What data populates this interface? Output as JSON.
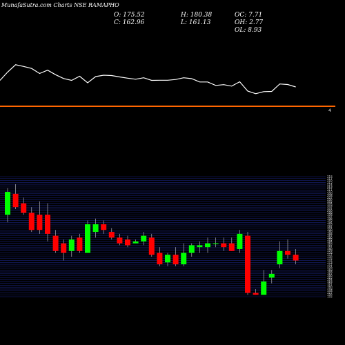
{
  "header": {
    "title": "MunafaSutra.com Charts NSE RAMAPHO"
  },
  "ohlc": {
    "open": "O: 175.52",
    "close": "C: 162.96",
    "high": "H: 180.38",
    "low": "L: 161.13",
    "oc": "OC: 7.71",
    "oh": "OH: 2.77",
    "ol": "OL: 8.93"
  },
  "colors": {
    "background": "#000000",
    "up_candle": "#00ff00",
    "down_candle": "#ff0000",
    "price_line": "#ffffff",
    "orange_line": "#ff6600",
    "grid": "#1a237e"
  },
  "upper_panel": {
    "orange_level_label": "4"
  },
  "chart_data": {
    "type": "candlestick",
    "ylim": [
      155,
      218
    ],
    "y_ticks": [
      218,
      217,
      216,
      215,
      214,
      213,
      212,
      211,
      210,
      209,
      208,
      207,
      206,
      205,
      204,
      203,
      202,
      201,
      200,
      199,
      198,
      197,
      196,
      195,
      194,
      193,
      192,
      191,
      190,
      189,
      188,
      187,
      186,
      185,
      184,
      183,
      182,
      181,
      180,
      179,
      178,
      177,
      176,
      175,
      174,
      173,
      172,
      171,
      170,
      169,
      168,
      167,
      166,
      165,
      164,
      163,
      162,
      161,
      160,
      159,
      158,
      157,
      156,
      155
    ],
    "candles": [
      {
        "o": 198,
        "h": 212,
        "l": 194,
        "c": 210
      },
      {
        "o": 209,
        "h": 214,
        "l": 201,
        "c": 202
      },
      {
        "o": 204,
        "h": 207,
        "l": 198,
        "c": 199
      },
      {
        "o": 199,
        "h": 202,
        "l": 189,
        "c": 190
      },
      {
        "o": 198,
        "h": 205,
        "l": 188,
        "c": 190
      },
      {
        "o": 198,
        "h": 204,
        "l": 184,
        "c": 188
      },
      {
        "o": 187,
        "h": 190,
        "l": 178,
        "c": 179
      },
      {
        "o": 183,
        "h": 185,
        "l": 174,
        "c": 178
      },
      {
        "o": 179,
        "h": 187,
        "l": 176,
        "c": 185
      },
      {
        "o": 186,
        "h": 188,
        "l": 178,
        "c": 179
      },
      {
        "o": 178,
        "h": 195,
        "l": 178,
        "c": 193
      },
      {
        "o": 189,
        "h": 196,
        "l": 186,
        "c": 193
      },
      {
        "o": 193,
        "h": 195,
        "l": 188,
        "c": 190
      },
      {
        "o": 189,
        "h": 191,
        "l": 185,
        "c": 186
      },
      {
        "o": 186,
        "h": 188,
        "l": 182,
        "c": 183
      },
      {
        "o": 185,
        "h": 187,
        "l": 181,
        "c": 182
      },
      {
        "o": 183,
        "h": 185,
        "l": 183,
        "c": 184
      },
      {
        "o": 184,
        "h": 189,
        "l": 182,
        "c": 187
      },
      {
        "o": 186,
        "h": 188,
        "l": 176,
        "c": 177
      },
      {
        "o": 178,
        "h": 181,
        "l": 171,
        "c": 172
      },
      {
        "o": 173,
        "h": 178,
        "l": 171,
        "c": 177
      },
      {
        "o": 177,
        "h": 181,
        "l": 171,
        "c": 172
      },
      {
        "o": 172,
        "h": 183,
        "l": 171,
        "c": 178
      },
      {
        "o": 178,
        "h": 183,
        "l": 176,
        "c": 182
      },
      {
        "o": 181,
        "h": 184,
        "l": 178,
        "c": 182
      },
      {
        "o": 181,
        "h": 186,
        "l": 178,
        "c": 183
      },
      {
        "o": 183,
        "h": 186,
        "l": 181,
        "c": 183
      },
      {
        "o": 183,
        "h": 186,
        "l": 179,
        "c": 181
      },
      {
        "o": 183,
        "h": 186,
        "l": 179,
        "c": 179
      },
      {
        "o": 180,
        "h": 190,
        "l": 178,
        "c": 188
      },
      {
        "o": 187,
        "h": 189,
        "l": 156,
        "c": 157
      },
      {
        "o": 157,
        "h": 159,
        "l": 156,
        "c": 156
      },
      {
        "o": 156,
        "h": 169,
        "l": 156,
        "c": 163
      },
      {
        "o": 165,
        "h": 169,
        "l": 162,
        "c": 167
      },
      {
        "o": 172,
        "h": 184,
        "l": 170,
        "c": 179
      },
      {
        "o": 179,
        "h": 185,
        "l": 175,
        "c": 177
      },
      {
        "o": 177,
        "h": 180,
        "l": 172,
        "c": 174
      }
    ],
    "line_series": [
      {
        "y": 214.2,
        "wobble": 0
      },
      {
        "y": 218.5
      },
      {
        "y": 217.5
      },
      {
        "y": 216.3
      },
      {
        "y": 213.4
      },
      {
        "y": 215.3
      },
      {
        "y": 212.7
      },
      {
        "y": 210.5
      },
      {
        "y": 209.4
      },
      {
        "y": 211.8
      },
      {
        "y": 208.0
      },
      {
        "y": 211.6
      },
      {
        "y": 212.4
      },
      {
        "y": 212.2
      },
      {
        "y": 211.4
      },
      {
        "y": 210.7
      },
      {
        "y": 210.1
      },
      {
        "y": 210.9
      },
      {
        "y": 209.4
      },
      {
        "y": 209.5
      },
      {
        "y": 209.5
      },
      {
        "y": 209.9
      },
      {
        "y": 210.9
      },
      {
        "y": 210.4
      },
      {
        "y": 208.5
      },
      {
        "y": 208.5
      },
      {
        "y": 206.5
      },
      {
        "y": 206.9
      },
      {
        "y": 206.1
      },
      {
        "y": 208.6
      },
      {
        "y": 203.2
      },
      {
        "y": 201.7
      },
      {
        "y": 202.9
      },
      {
        "y": 203.0
      },
      {
        "y": 207.3
      },
      {
        "y": 207.0
      },
      {
        "y": 205.6
      }
    ]
  }
}
